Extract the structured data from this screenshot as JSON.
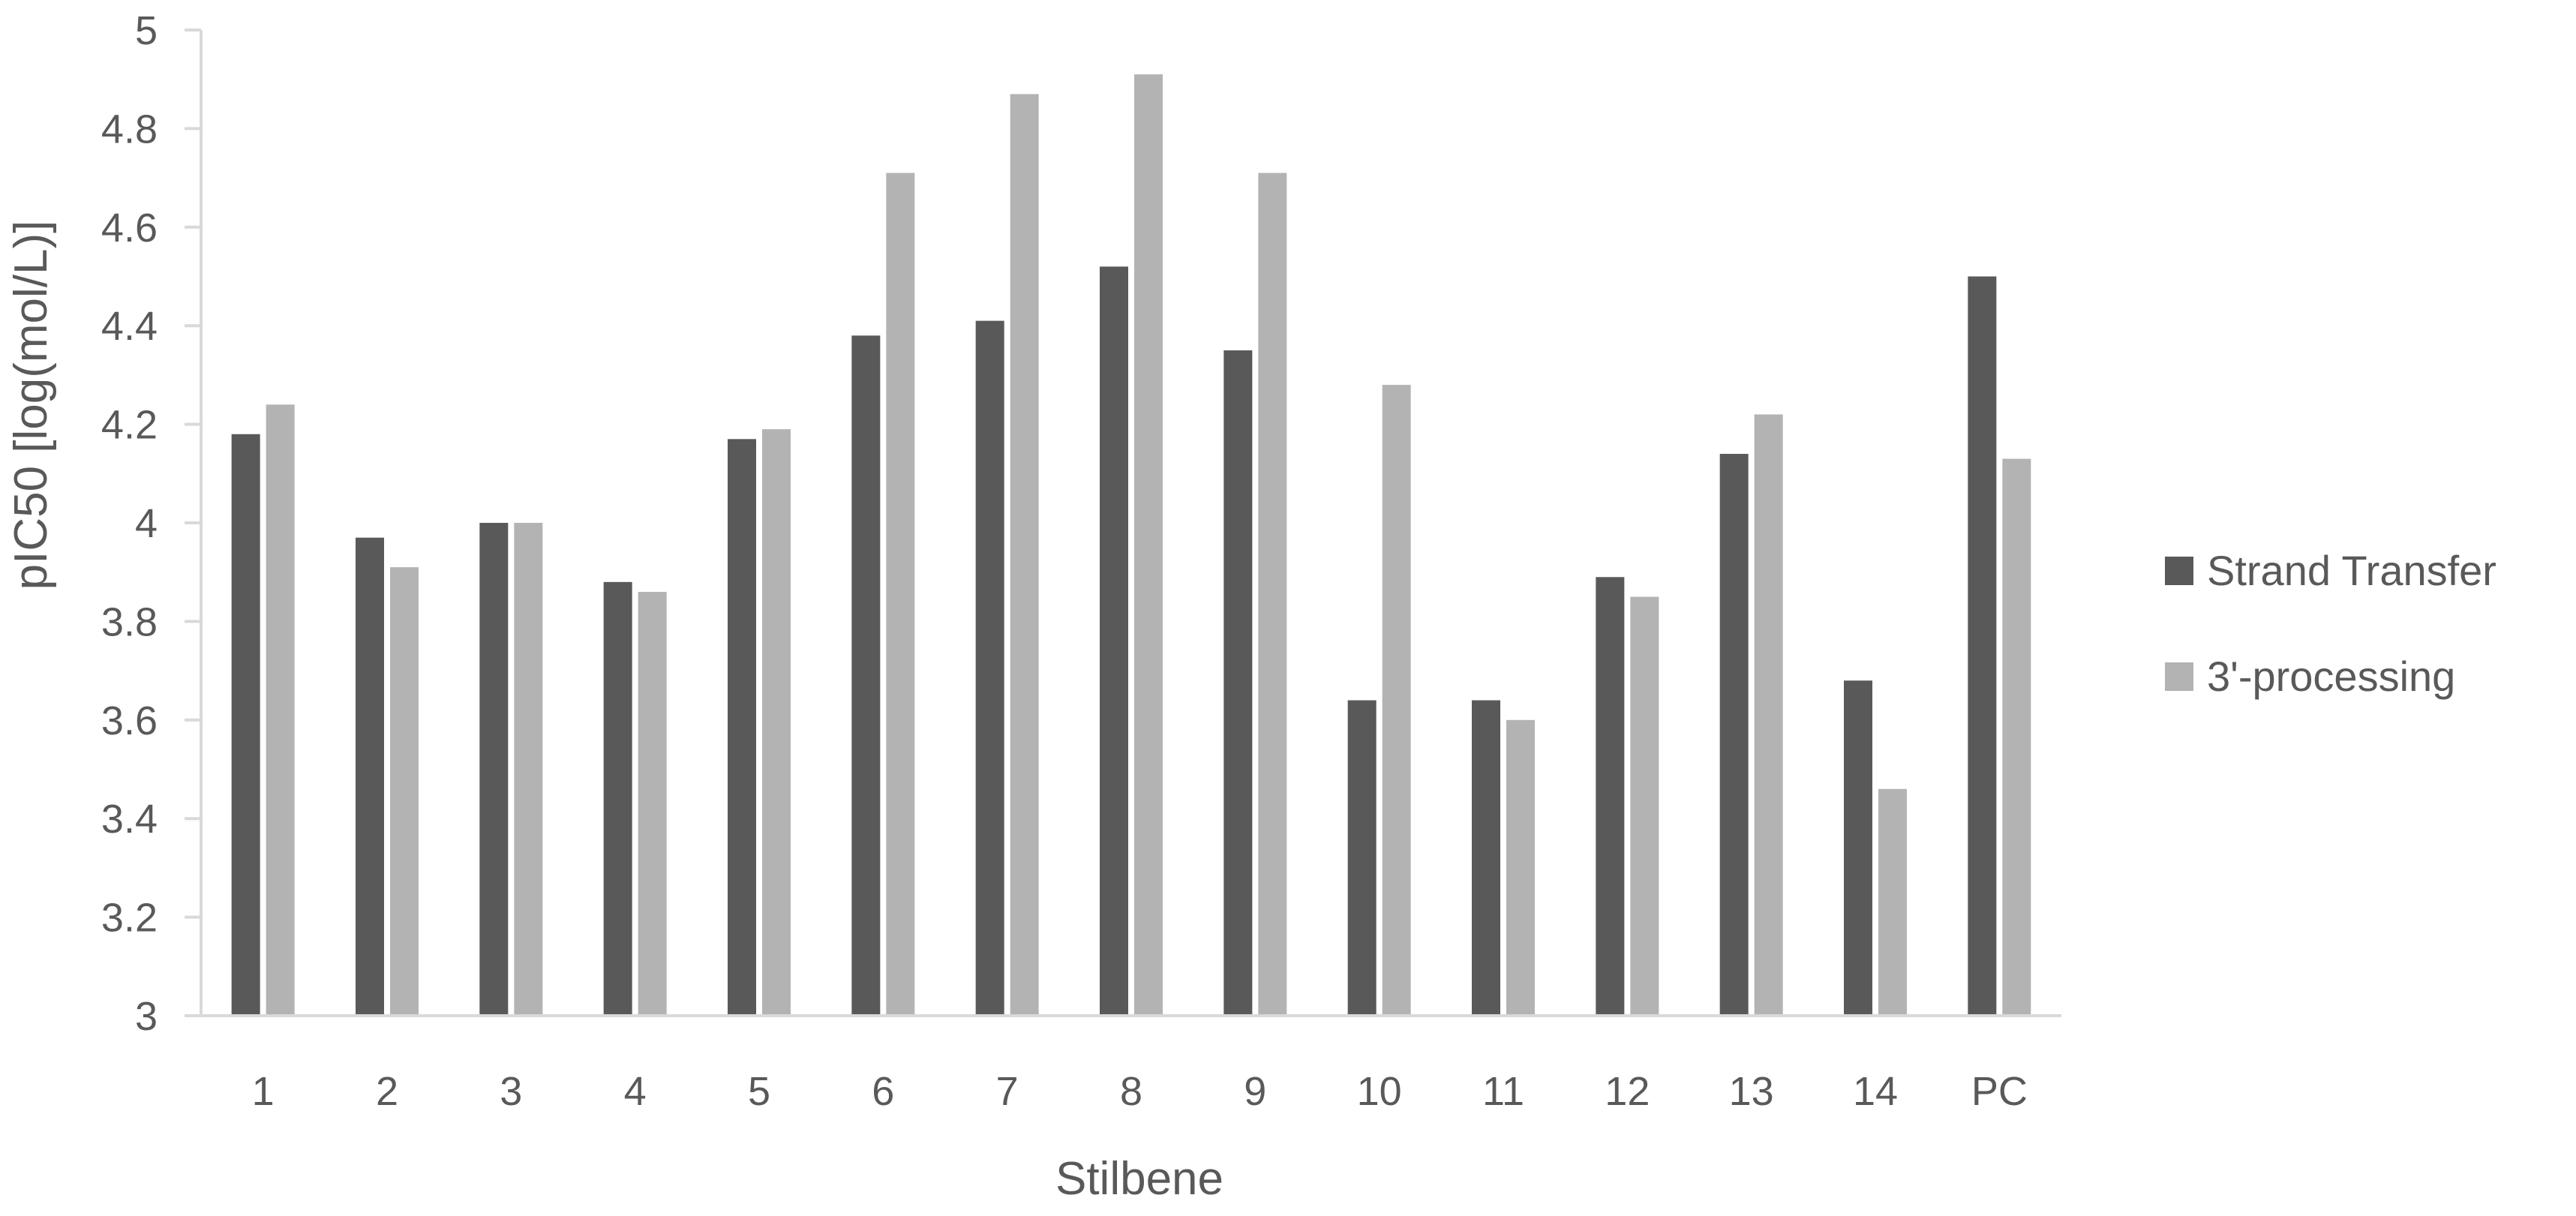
{
  "chart_data": {
    "type": "bar",
    "title": "",
    "xlabel": "Stilbene",
    "ylabel": "pIC50 [log(mol/L)]",
    "ylim": [
      3,
      5
    ],
    "ytick_step": 0.2,
    "yticks": [
      "3",
      "3.2",
      "3.4",
      "3.6",
      "3.8",
      "4",
      "4.2",
      "4.4",
      "4.6",
      "4.8",
      "5"
    ],
    "grid": false,
    "legend_position": "right",
    "categories": [
      "1",
      "2",
      "3",
      "4",
      "5",
      "6",
      "7",
      "8",
      "9",
      "10",
      "11",
      "12",
      "13",
      "14",
      "PC"
    ],
    "series": [
      {
        "name": "Strand Transfer",
        "color": "#595959",
        "values": [
          4.18,
          3.97,
          4.0,
          3.88,
          4.17,
          4.38,
          4.41,
          4.52,
          4.35,
          3.64,
          3.64,
          3.89,
          4.14,
          3.68,
          4.5
        ]
      },
      {
        "name": "3'-processing",
        "color": "#b3b3b3",
        "values": [
          4.24,
          3.91,
          4.0,
          3.86,
          4.19,
          4.71,
          4.87,
          4.91,
          4.71,
          4.28,
          3.6,
          3.85,
          4.22,
          3.46,
          4.13
        ]
      }
    ]
  }
}
